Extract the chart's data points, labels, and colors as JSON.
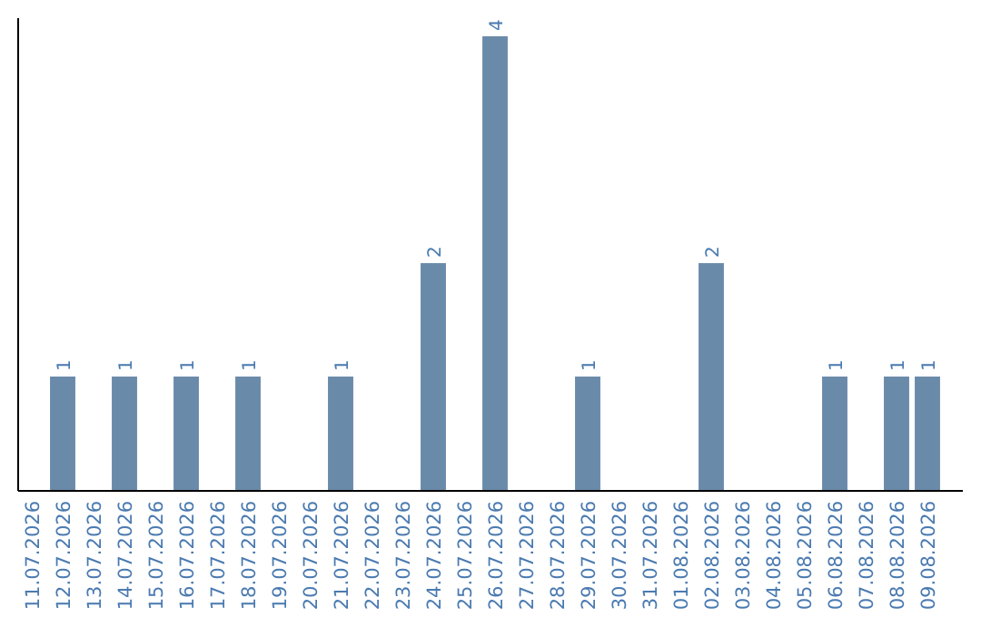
{
  "chart_data": {
    "type": "bar",
    "categories": [
      "11.07.2026",
      "12.07.2026",
      "13.07.2026",
      "14.07.2026",
      "15.07.2026",
      "16.07.2026",
      "17.07.2026",
      "18.07.2026",
      "19.07.2026",
      "20.07.2026",
      "21.07.2026",
      "22.07.2026",
      "23.07.2026",
      "24.07.2026",
      "25.07.2026",
      "26.07.2026",
      "27.07.2026",
      "28.07.2026",
      "29.07.2026",
      "30.07.2026",
      "31.07.2026",
      "01.08.2026",
      "02.08.2026",
      "03.08.2026",
      "04.08.2026",
      "05.08.2026",
      "06.08.2026",
      "07.08.2026",
      "08.08.2026",
      "09.08.2026"
    ],
    "values": [
      0,
      1,
      0,
      1,
      0,
      1,
      0,
      1,
      0,
      0,
      1,
      0,
      0,
      2,
      0,
      4,
      0,
      0,
      1,
      0,
      0,
      0,
      2,
      0,
      0,
      0,
      1,
      0,
      1,
      1
    ],
    "value_labels": [
      null,
      "1",
      null,
      "1",
      null,
      "1",
      null,
      "1",
      null,
      null,
      "1",
      null,
      null,
      "2",
      null,
      "4",
      null,
      null,
      "1",
      null,
      null,
      null,
      "2",
      null,
      null,
      null,
      "1",
      null,
      "1",
      "1"
    ],
    "color": "#6a8aaa",
    "tick_labels": "x"
  }
}
